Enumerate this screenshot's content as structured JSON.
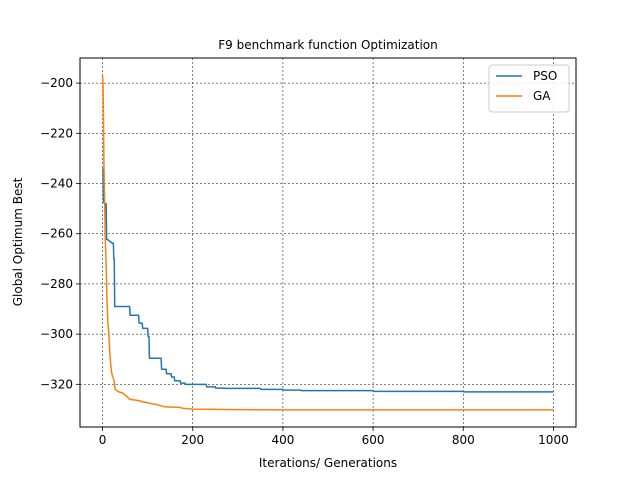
{
  "chart_data": {
    "type": "line",
    "title": "F9 benchmark function Optimization",
    "xlabel": "Iterations/ Generations",
    "ylabel": "Global Optimum Best",
    "xlim": [
      -50,
      1050
    ],
    "ylim": [
      -337,
      -190
    ],
    "xticks": [
      0,
      200,
      400,
      600,
      800,
      1000
    ],
    "yticks": [
      -200,
      -220,
      -240,
      -260,
      -280,
      -300,
      -320
    ],
    "grid": true,
    "grid_style": "dashed",
    "legend_position": "top-right",
    "series": [
      {
        "name": "PSO",
        "color": "#1f77b4",
        "x": [
          0,
          1,
          2,
          3,
          5,
          8,
          9,
          10,
          22,
          24,
          25,
          26,
          27,
          60,
          61,
          80,
          81,
          88,
          89,
          100,
          101,
          103,
          104,
          130,
          131,
          141,
          142,
          152,
          153,
          159,
          160,
          172,
          173,
          183,
          184,
          230,
          231,
          250,
          251,
          270,
          271,
          350,
          351,
          400,
          401,
          440,
          441,
          600,
          601,
          800,
          801,
          1000
        ],
        "y": [
          -234,
          -234,
          -247.5,
          -247.5,
          -248,
          -248,
          -262.2,
          -262.2,
          -263.8,
          -263.8,
          -270,
          -270,
          -289,
          -289,
          -292.5,
          -292.5,
          -295.6,
          -295.6,
          -297.7,
          -297.7,
          -301,
          -301,
          -309.6,
          -309.6,
          -314,
          -314,
          -315.8,
          -315.8,
          -317.1,
          -317.1,
          -318.6,
          -318.6,
          -319.5,
          -319.5,
          -320,
          -320,
          -321,
          -321,
          -321.5,
          -321.5,
          -321.6,
          -321.6,
          -322,
          -322,
          -322.3,
          -322.3,
          -322.5,
          -322.5,
          -322.8,
          -322.8,
          -323,
          -323
        ]
      },
      {
        "name": "GA",
        "color": "#ff7f0e",
        "x": [
          0,
          1,
          2,
          3,
          4,
          5,
          6,
          8,
          10,
          12,
          14,
          16,
          18,
          20,
          22,
          25,
          28,
          32,
          36,
          45,
          55,
          60,
          70,
          80,
          90,
          100,
          110,
          120,
          130,
          140,
          170,
          180,
          200,
          250,
          300,
          400,
          500,
          600,
          800,
          1000
        ],
        "y": [
          -197,
          -200,
          -212,
          -232,
          -242,
          -250,
          -262,
          -272,
          -287,
          -296,
          -300,
          -307,
          -312,
          -315,
          -317,
          -318,
          -322,
          -322.5,
          -323,
          -323.5,
          -325,
          -326,
          -326.2,
          -326.5,
          -327,
          -327.3,
          -327.8,
          -328,
          -328.6,
          -329,
          -329.2,
          -329.6,
          -329.9,
          -330,
          -330.1,
          -330.2,
          -330.2,
          -330.2,
          -330.2,
          -330.2
        ]
      }
    ]
  }
}
